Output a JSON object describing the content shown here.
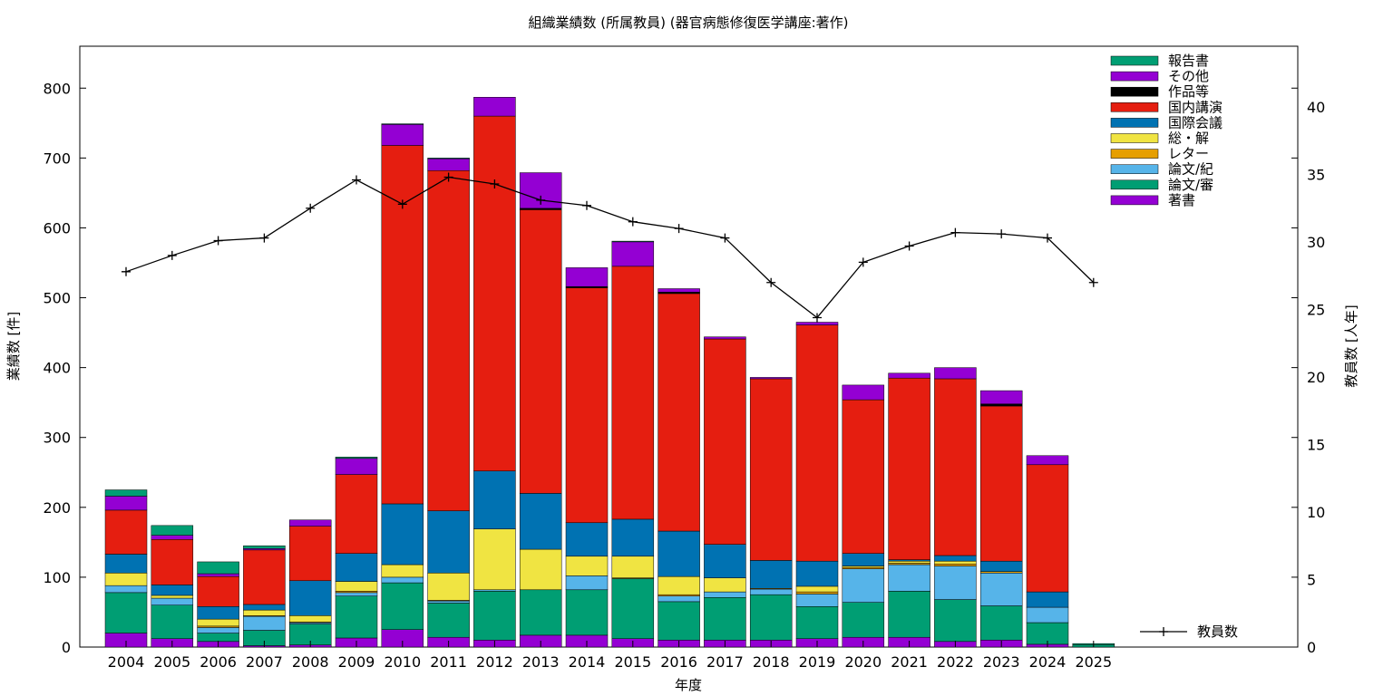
{
  "chart_data": {
    "type": "bar",
    "stacked": true,
    "title": "組織業績数 (所属教員) (器官病態修復医学講座:著作)",
    "xlabel": "年度",
    "ylabel": "業績数 [件]",
    "y2label": "教員数 [人年]",
    "ylim": [
      0,
      860
    ],
    "y2lim": [
      0,
      44.5
    ],
    "yticks": [
      0,
      100,
      200,
      300,
      400,
      500,
      600,
      700,
      800
    ],
    "y2ticks": [
      0,
      5,
      10,
      15,
      20,
      25,
      30,
      35,
      40
    ],
    "grid": false,
    "legend_position": "top-right",
    "categories": [
      "2004",
      "2005",
      "2006",
      "2007",
      "2008",
      "2009",
      "2010",
      "2011",
      "2012",
      "2013",
      "2014",
      "2015",
      "2016",
      "2017",
      "2018",
      "2019",
      "2020",
      "2021",
      "2022",
      "2023",
      "2024",
      "2025"
    ],
    "series": [
      {
        "name": "著書",
        "color": "#9400d3",
        "values": [
          20,
          12,
          8,
          2,
          3,
          13,
          25,
          14,
          10,
          17,
          17,
          12,
          10,
          10,
          10,
          12,
          14,
          14,
          8,
          10,
          4,
          0
        ]
      },
      {
        "name": "論文/審",
        "color": "#009e73",
        "values": [
          58,
          48,
          12,
          22,
          30,
          60,
          67,
          49,
          70,
          65,
          65,
          86,
          55,
          61,
          65,
          46,
          50,
          66,
          60,
          49,
          31,
          3
        ]
      },
      {
        "name": "論文/紀",
        "color": "#56b4e9",
        "values": [
          10,
          10,
          8,
          20,
          2,
          5,
          8,
          3,
          2,
          0,
          20,
          0,
          8,
          8,
          8,
          18,
          48,
          38,
          48,
          47,
          22,
          0
        ]
      },
      {
        "name": "レター",
        "color": "#e69f00",
        "values": [
          0,
          0,
          2,
          1,
          1,
          2,
          0,
          1,
          0,
          0,
          0,
          1,
          2,
          0,
          1,
          3,
          2,
          2,
          3,
          2,
          0,
          0
        ]
      },
      {
        "name": "総・解",
        "color": "#f0e442",
        "values": [
          18,
          4,
          10,
          8,
          9,
          14,
          18,
          39,
          87,
          58,
          28,
          31,
          26,
          20,
          0,
          8,
          2,
          3,
          4,
          0,
          0,
          0
        ]
      },
      {
        "name": "国際会議",
        "color": "#0072b2",
        "values": [
          27,
          15,
          18,
          8,
          50,
          40,
          87,
          89,
          83,
          80,
          48,
          53,
          65,
          48,
          40,
          36,
          18,
          2,
          8,
          15,
          22,
          0
        ]
      },
      {
        "name": "国内講演",
        "color": "#e51e10",
        "values": [
          63,
          65,
          43,
          78,
          78,
          113,
          513,
          487,
          508,
          406,
          336,
          362,
          340,
          294,
          260,
          338,
          220,
          260,
          253,
          222,
          182,
          0
        ]
      },
      {
        "name": "作品等",
        "color": "#000000",
        "values": [
          0,
          0,
          0,
          0,
          0,
          0,
          0,
          0,
          0,
          2,
          2,
          0,
          2,
          0,
          0,
          0,
          0,
          0,
          0,
          3,
          0,
          0
        ]
      },
      {
        "name": "その他",
        "color": "#9400d3",
        "values": [
          20,
          6,
          4,
          2,
          9,
          23,
          30,
          17,
          27,
          51,
          27,
          35,
          5,
          3,
          2,
          4,
          21,
          7,
          16,
          19,
          13,
          0
        ]
      },
      {
        "name": "報告書",
        "color": "#009e73",
        "values": [
          9,
          14,
          17,
          4,
          0,
          2,
          1,
          1,
          0,
          0,
          0,
          1,
          0,
          0,
          0,
          0,
          0,
          0,
          0,
          0,
          0,
          2
        ]
      }
    ],
    "line_series": {
      "name": "教員数",
      "axis": "y2",
      "color": "#000000",
      "values": [
        27.8,
        29.0,
        30.1,
        30.3,
        32.5,
        34.6,
        32.8,
        34.8,
        34.3,
        33.1,
        32.7,
        31.5,
        31.0,
        30.3,
        27.0,
        24.4,
        28.5,
        29.7,
        30.7,
        30.6,
        30.3,
        27.0
      ]
    }
  }
}
